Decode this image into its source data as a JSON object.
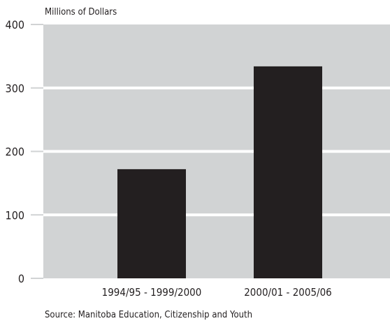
{
  "chart_data": {
    "type": "bar",
    "title": "",
    "xlabel": "",
    "ylabel": "Millions of Dollars",
    "categories": [
      "1994/95 - 1999/2000",
      "2000/01 - 2005/06"
    ],
    "values": [
      172,
      334
    ],
    "ylim": [
      0,
      400
    ],
    "yticks": [
      0,
      100,
      200,
      300,
      400
    ],
    "grid": true,
    "legend": "none",
    "colors": {
      "plot_background": "#d1d3d4",
      "bar": "#231f20",
      "gridline": "#ffffff",
      "text": "#231f20"
    },
    "source": "Source: Manitoba Education, Citizenship and Youth"
  }
}
